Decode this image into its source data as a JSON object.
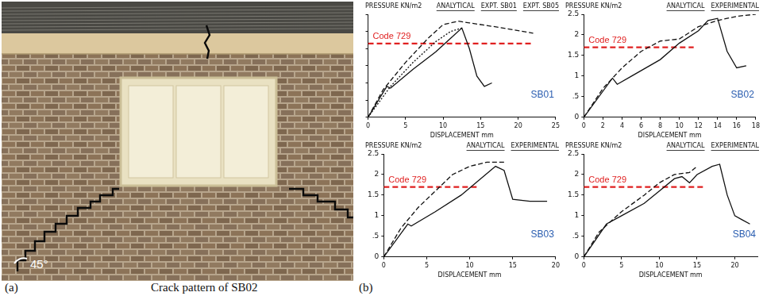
{
  "figure": {
    "panel_a": {
      "label": "(a)",
      "caption": "Crack pattern of SB02",
      "angle_label": "45°"
    },
    "panel_b": {
      "label": "(b)"
    }
  },
  "chart_data": [
    {
      "type": "line",
      "title": "SB01",
      "y_label": "PRESSURE KN/m2",
      "x_label": "DISPLACEMENT mm",
      "xlim": [
        0,
        25
      ],
      "xticks": [
        0,
        5,
        10,
        15,
        20,
        25
      ],
      "ylim": [
        0,
        3
      ],
      "yticks": [
        0,
        0.5,
        1,
        1.5,
        2,
        2.5,
        3
      ],
      "grid": false,
      "tick_labels": "x",
      "series": [
        {
          "name": "ANALYTICAL",
          "color": "#111111",
          "line_style": "dashed",
          "marker": "none",
          "x": [
            0,
            2,
            5,
            8,
            10,
            12,
            13.5,
            18,
            22
          ],
          "values": [
            0,
            0.8,
            1.6,
            2.3,
            2.7,
            2.8,
            2.75,
            2.6,
            2.45
          ]
        },
        {
          "name": "EXPT. SB01",
          "color": "#111111",
          "line_style": "solid",
          "marker": "none",
          "x": [
            0,
            2.5,
            3,
            6,
            9,
            11,
            12.5,
            13.5,
            14.5,
            15.5,
            16.5
          ],
          "values": [
            0,
            0.9,
            0.85,
            1.4,
            1.9,
            2.3,
            2.6,
            2.0,
            1.2,
            0.9,
            1.0
          ]
        },
        {
          "name": "EXPT. SB05",
          "color": "#111111",
          "line_style": "dotted",
          "marker": "none",
          "x": [
            0,
            3,
            6,
            9,
            11,
            12.5
          ],
          "values": [
            0,
            0.9,
            1.6,
            2.2,
            2.5,
            2.6
          ]
        }
      ],
      "code_line": {
        "label": "Code 729",
        "value": 2.15,
        "x": [
          0,
          22
        ],
        "color": "#e02020"
      },
      "annotation": {
        "text": "SB01",
        "color": "#2a5db0"
      }
    },
    {
      "type": "line",
      "title": "SB02",
      "y_label": "PRESSURE KN/m2",
      "x_label": "DISPLACEMENT mm",
      "xlim": [
        0,
        18
      ],
      "xticks": [
        0,
        2,
        4,
        6,
        8,
        10,
        12,
        14,
        16,
        18
      ],
      "ylim": [
        0,
        2.5
      ],
      "yticks": [
        0,
        {
          "value": 0.5,
          "label": ".5"
        },
        1,
        1.5,
        2,
        2.5
      ],
      "grid": false,
      "series": [
        {
          "name": "ANALYTICAL",
          "color": "#111111",
          "line_style": "dashed",
          "marker": "none",
          "x": [
            0,
            2,
            4,
            6,
            8,
            10,
            12,
            14,
            16,
            18
          ],
          "values": [
            0,
            0.7,
            1.2,
            1.6,
            1.85,
            1.9,
            2.2,
            2.35,
            2.45,
            2.5
          ]
        },
        {
          "name": "EXPERIMENTAL",
          "color": "#111111",
          "line_style": "solid",
          "marker": "none",
          "x": [
            0,
            3,
            3.5,
            5,
            8,
            10,
            12,
            13,
            14,
            15,
            16,
            17
          ],
          "values": [
            0,
            0.95,
            0.8,
            1.0,
            1.4,
            1.8,
            2.1,
            2.35,
            2.4,
            1.6,
            1.2,
            1.25
          ]
        }
      ],
      "code_line": {
        "label": "Code 729",
        "value": 1.7,
        "x": [
          0,
          11.5
        ],
        "color": "#e02020"
      },
      "annotation": {
        "text": "SB02",
        "color": "#2a5db0"
      }
    },
    {
      "type": "line",
      "title": "SB03",
      "y_label": "PRESSURE KN/m2",
      "x_label": "DISPLACEMENT mm",
      "xlim": [
        0,
        20
      ],
      "xticks": [
        0,
        5,
        10,
        15,
        20
      ],
      "ylim": [
        0,
        2.5
      ],
      "yticks": [
        0,
        {
          "value": 0.5,
          "label": ".5"
        },
        1,
        1.5,
        2,
        2.5
      ],
      "grid": false,
      "series": [
        {
          "name": "ANALYTICAL",
          "color": "#111111",
          "line_style": "dashed",
          "marker": "none",
          "x": [
            0,
            2,
            4,
            6,
            8,
            10,
            12,
            14
          ],
          "values": [
            0,
            0.7,
            1.2,
            1.6,
            2.0,
            2.2,
            2.3,
            2.3
          ]
        },
        {
          "name": "EXPERIMENTAL",
          "color": "#111111",
          "line_style": "solid",
          "marker": "none",
          "x": [
            0,
            2.8,
            3.2,
            6,
            9,
            11,
            13,
            14,
            15,
            17,
            19
          ],
          "values": [
            0,
            0.8,
            0.75,
            1.1,
            1.5,
            1.85,
            2.2,
            2.1,
            1.4,
            1.35,
            1.35
          ]
        }
      ],
      "code_line": {
        "label": "Code 729",
        "value": 1.7,
        "x": [
          0,
          11
        ],
        "color": "#e02020"
      },
      "annotation": {
        "text": "SB03",
        "color": "#2a5db0"
      }
    },
    {
      "type": "line",
      "title": "SB04",
      "y_label": "PRESSURE KN/m2",
      "x_label": "DISPLACEMENT mm",
      "xlim": [
        0,
        23
      ],
      "xticks": [
        0,
        5,
        10,
        15,
        20
      ],
      "ylim": [
        0,
        2.5
      ],
      "yticks": [
        0,
        {
          "value": 0.5,
          "label": ".5"
        },
        1,
        1.5,
        2,
        2.5
      ],
      "grid": false,
      "series": [
        {
          "name": "ANALYTICAL",
          "color": "#111111",
          "line_style": "dashed",
          "marker": "none",
          "x": [
            0,
            2,
            5,
            8,
            10,
            12,
            14,
            15
          ],
          "values": [
            0,
            0.6,
            1.1,
            1.5,
            1.8,
            2.0,
            2.05,
            2.2
          ]
        },
        {
          "name": "EXPERIMENTAL",
          "color": "#111111",
          "line_style": "solid",
          "marker": "none",
          "x": [
            0,
            3,
            5,
            8,
            10,
            12,
            13,
            14,
            15,
            17,
            18,
            19,
            20,
            21,
            22
          ],
          "values": [
            0,
            0.8,
            1.0,
            1.3,
            1.6,
            1.9,
            1.95,
            1.8,
            2.0,
            2.2,
            2.25,
            1.5,
            1.0,
            0.9,
            0.8
          ]
        }
      ],
      "code_line": {
        "label": "Code 729",
        "value": 1.7,
        "x": [
          0,
          16
        ],
        "color": "#e02020"
      },
      "annotation": {
        "text": "SB04",
        "color": "#2a5db0"
      }
    }
  ]
}
